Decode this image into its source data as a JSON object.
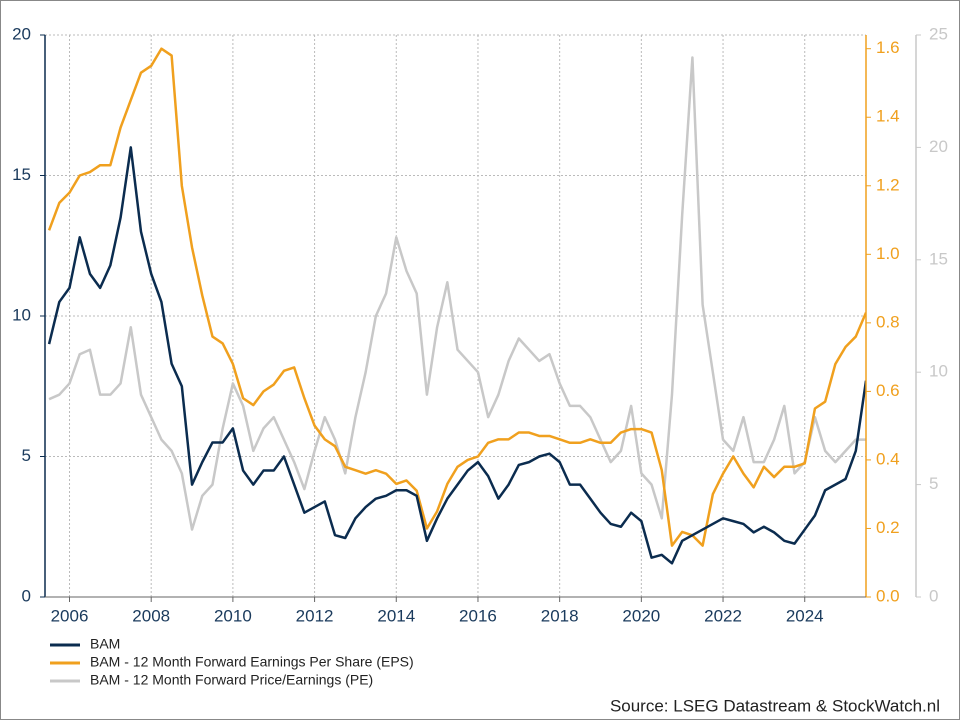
{
  "chart_data": {
    "type": "line",
    "source": "Source: LSEG Datastream & StockWatch.nl",
    "x": [
      2005.5,
      2005.75,
      2006,
      2006.25,
      2006.5,
      2006.75,
      2007,
      2007.25,
      2007.5,
      2007.75,
      2008,
      2008.25,
      2008.5,
      2008.75,
      2009,
      2009.25,
      2009.5,
      2009.75,
      2010,
      2010.25,
      2010.5,
      2010.75,
      2011,
      2011.25,
      2011.5,
      2011.75,
      2012,
      2012.25,
      2012.5,
      2012.75,
      2013,
      2013.25,
      2013.5,
      2013.75,
      2014,
      2014.25,
      2014.5,
      2014.75,
      2015,
      2015.25,
      2015.5,
      2015.75,
      2016,
      2016.25,
      2016.5,
      2016.75,
      2017,
      2017.25,
      2017.5,
      2017.75,
      2018,
      2018.25,
      2018.5,
      2018.75,
      2019,
      2019.25,
      2019.5,
      2019.75,
      2020,
      2020.25,
      2020.5,
      2020.75,
      2021,
      2021.25,
      2021.5,
      2021.75,
      2022,
      2022.25,
      2022.5,
      2022.75,
      2023,
      2023.25,
      2023.5,
      2023.75,
      2024,
      2024.25,
      2024.5,
      2024.75,
      2025,
      2025.25,
      2025.5
    ],
    "series": [
      {
        "name": "BAM",
        "color": "#0b2c4f",
        "values": [
          9.0,
          10.5,
          11.0,
          12.8,
          11.5,
          11.0,
          11.8,
          13.5,
          16.0,
          13.0,
          11.5,
          10.5,
          8.3,
          7.5,
          4.0,
          4.8,
          5.5,
          5.5,
          6.0,
          4.5,
          4.0,
          4.5,
          4.5,
          5.0,
          4.0,
          3.0,
          3.2,
          3.4,
          2.2,
          2.1,
          2.8,
          3.2,
          3.5,
          3.6,
          3.8,
          3.8,
          3.6,
          2.0,
          2.8,
          3.5,
          4.0,
          4.5,
          4.8,
          4.3,
          3.5,
          4.0,
          4.7,
          4.8,
          5.0,
          5.1,
          4.8,
          4.0,
          4.0,
          3.5,
          3.0,
          2.6,
          2.5,
          3.0,
          2.7,
          1.4,
          1.5,
          1.2,
          2.0,
          2.2,
          2.4,
          2.6,
          2.8,
          2.7,
          2.6,
          2.3,
          2.5,
          2.3,
          2.0,
          1.9,
          2.4,
          2.9,
          3.8,
          4.0,
          4.2,
          5.2,
          7.7
        ]
      },
      {
        "name": "BAM - 12 Month Forward Earnings Per Share (EPS)",
        "color": "#f0a01e",
        "axis": "y2",
        "values": [
          1.07,
          1.15,
          1.18,
          1.23,
          1.24,
          1.26,
          1.26,
          1.37,
          1.45,
          1.53,
          1.55,
          1.6,
          1.58,
          1.2,
          1.02,
          0.88,
          0.76,
          0.74,
          0.68,
          0.58,
          0.56,
          0.6,
          0.62,
          0.66,
          0.67,
          0.58,
          0.5,
          0.46,
          0.44,
          0.38,
          0.37,
          0.36,
          0.37,
          0.36,
          0.33,
          0.34,
          0.31,
          0.2,
          0.25,
          0.33,
          0.38,
          0.4,
          0.41,
          0.45,
          0.46,
          0.46,
          0.48,
          0.48,
          0.47,
          0.47,
          0.46,
          0.45,
          0.45,
          0.46,
          0.45,
          0.45,
          0.48,
          0.49,
          0.49,
          0.48,
          0.37,
          0.15,
          0.19,
          0.18,
          0.15,
          0.3,
          0.36,
          0.41,
          0.36,
          0.32,
          0.38,
          0.35,
          0.38,
          0.38,
          0.39,
          0.55,
          0.57,
          0.68,
          0.73,
          0.76,
          0.83
        ]
      },
      {
        "name": "BAM - 12 Month Forward Price/Earnings (PE)",
        "color": "#c8c8c8",
        "axis": "y3",
        "values": [
          8.8,
          9.0,
          9.5,
          10.8,
          11.0,
          9.0,
          9.0,
          9.5,
          12.0,
          9.0,
          8.0,
          7.0,
          6.5,
          5.5,
          3.0,
          4.5,
          5.0,
          7.5,
          9.5,
          8.5,
          6.5,
          7.5,
          8.0,
          7.0,
          6.0,
          4.8,
          6.5,
          8.0,
          7.0,
          5.5,
          8.0,
          10.0,
          12.5,
          13.5,
          16.0,
          14.5,
          13.5,
          9.0,
          12.0,
          14.0,
          11.0,
          10.5,
          10.0,
          8.0,
          9.0,
          10.5,
          11.5,
          11.0,
          10.5,
          10.8,
          9.5,
          8.5,
          8.5,
          8.0,
          7.0,
          6.0,
          6.5,
          8.5,
          5.5,
          5.0,
          3.5,
          9.0,
          17.0,
          24.0,
          13.0,
          10.0,
          7.0,
          6.5,
          8.0,
          6.0,
          6.0,
          7.0,
          8.5,
          5.5,
          6.0,
          8.0,
          6.5,
          6.0,
          6.5,
          7.0,
          7.0
        ]
      }
    ],
    "xlim": [
      2005.4,
      2025.5
    ],
    "xticks": [
      2006,
      2008,
      2010,
      2012,
      2014,
      2016,
      2018,
      2020,
      2022,
      2024
    ],
    "ylim": [
      0,
      20
    ],
    "yticks": [
      0,
      5,
      10,
      15,
      20
    ],
    "y2lim": [
      0,
      1.64
    ],
    "y2ticks": [
      {
        "value": 0,
        "label": "0.0"
      },
      0.2,
      0.4,
      0.6,
      0.8,
      {
        "value": 1,
        "label": "1.0"
      },
      1.2,
      1.4,
      1.6
    ],
    "y3lim": [
      0,
      25
    ],
    "y3ticks": [
      0,
      5,
      10,
      15,
      20,
      25
    ],
    "grid": true
  }
}
